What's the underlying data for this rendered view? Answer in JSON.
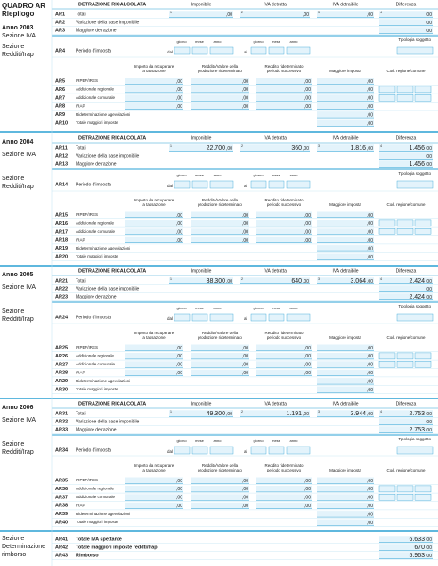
{
  "header": {
    "title": "QUADRO AR",
    "subtitle": "Riepilogo"
  },
  "labels": {
    "sezione_iva": "Sezione IVA",
    "sezione": "Sezione",
    "redditi_irap": "Redditi/Irap",
    "detrazione": "DETRAZIONE RICALCOLATA",
    "col_iva": [
      "Imponibile",
      "IVA detratta",
      "IVA detraibile",
      "Differenza"
    ],
    "periodo": "Periodo d'imposta",
    "giorno": "giorno",
    "mese": "mese",
    "anno": "anno",
    "dal": "dal",
    "al": "al",
    "tipologia": "Tipologia soggetto",
    "col_redditi": [
      [
        "Importo da recuperare",
        "a tassazione"
      ],
      [
        "Reddito/Valore della",
        "produzione rideterminato"
      ],
      [
        "Reddito rideterminato",
        "periodo successivo"
      ],
      [
        "Maggiore imposta"
      ],
      [
        "Cod. regione/comune"
      ]
    ],
    "cents": ",00",
    "box_numbers": [
      "1",
      "2",
      "3",
      "4"
    ]
  },
  "years": [
    {
      "anno": "Anno 2003",
      "iva_rows": [
        {
          "code": "AR1",
          "label": "Totali"
        },
        {
          "code": "AR2",
          "label": "Variazione della base imponibile"
        },
        {
          "code": "AR3",
          "label": "Maggiore detrazione"
        }
      ],
      "periodo_code": "AR4",
      "redditi_rows": [
        {
          "code": "AR5",
          "label": "IRPEF/IRES"
        },
        {
          "code": "AR6",
          "label": "Addizionale regionale"
        },
        {
          "code": "AR7",
          "label": "Addizionale comunale"
        },
        {
          "code": "AR8",
          "label": "IRAP"
        },
        {
          "code": "AR9",
          "label": "Rideterminazione agevolazioni"
        },
        {
          "code": "AR10",
          "label": "Totale maggiori imposte"
        }
      ]
    },
    {
      "anno": "Anno 2004",
      "iva_rows": [
        {
          "code": "AR11",
          "label": "Totali",
          "values": [
            "22.700",
            "360",
            "1.816",
            "1.456"
          ]
        },
        {
          "code": "AR12",
          "label": "Variazione della base imponibile"
        },
        {
          "code": "AR13",
          "label": "Maggiore detrazione",
          "value": "1.456"
        }
      ],
      "periodo_code": "AR14",
      "redditi_rows": [
        {
          "code": "AR15",
          "label": "IRPEF/IRES"
        },
        {
          "code": "AR16",
          "label": "Addizionale regionale"
        },
        {
          "code": "AR17",
          "label": "Addizionale comunale"
        },
        {
          "code": "AR18",
          "label": "IRAP"
        },
        {
          "code": "AR19",
          "label": "Rideterminazione agevolazioni"
        },
        {
          "code": "AR20",
          "label": "Totale maggiori imposte"
        }
      ]
    },
    {
      "anno": "Anno 2005",
      "iva_rows": [
        {
          "code": "AR21",
          "label": "Totali",
          "values": [
            "38.300",
            "640",
            "3.064",
            "2.424"
          ]
        },
        {
          "code": "AR22",
          "label": "Variazione della base imponibile"
        },
        {
          "code": "AR23",
          "label": "Maggiore detrazione",
          "value": "2.424"
        }
      ],
      "periodo_code": "AR24",
      "redditi_rows": [
        {
          "code": "AR25",
          "label": "IRPEF/IRES"
        },
        {
          "code": "AR26",
          "label": "Addizionale regionale"
        },
        {
          "code": "AR27",
          "label": "Addizionale comunale"
        },
        {
          "code": "AR28",
          "label": "IRAP"
        },
        {
          "code": "AR29",
          "label": "Rideterminazione agevolazioni"
        },
        {
          "code": "AR30",
          "label": "Totale maggiori imposte"
        }
      ]
    },
    {
      "anno": "Anno 2006",
      "iva_rows": [
        {
          "code": "AR31",
          "label": "Totali",
          "values": [
            "49.300",
            "1.191",
            "3.944",
            "2.753"
          ]
        },
        {
          "code": "AR32",
          "label": "Variazione della base imponibile"
        },
        {
          "code": "AR33",
          "label": "Maggiore detrazione",
          "value": "2.753"
        }
      ],
      "periodo_code": "AR34",
      "redditi_rows": [
        {
          "code": "AR35",
          "label": "IRPEF/IRES"
        },
        {
          "code": "AR36",
          "label": "Addizionale regionale"
        },
        {
          "code": "AR37",
          "label": "Addizionale comunale"
        },
        {
          "code": "AR38",
          "label": "IRAP"
        },
        {
          "code": "AR39",
          "label": "Rideterminazione agevolazioni"
        },
        {
          "code": "AR40",
          "label": "Totale maggiori imposte"
        }
      ]
    }
  ],
  "finale": {
    "label": [
      "Sezione",
      "Determinazione",
      "rimborso"
    ],
    "rows": [
      {
        "code": "AR41",
        "label": "Totale IVA spettante",
        "value": "6.633"
      },
      {
        "code": "AR42",
        "label": "Totale maggiori imposte reddti/Irap",
        "value": "670"
      },
      {
        "code": "AR43",
        "label": "Rimborso",
        "value": "5.963"
      }
    ]
  }
}
